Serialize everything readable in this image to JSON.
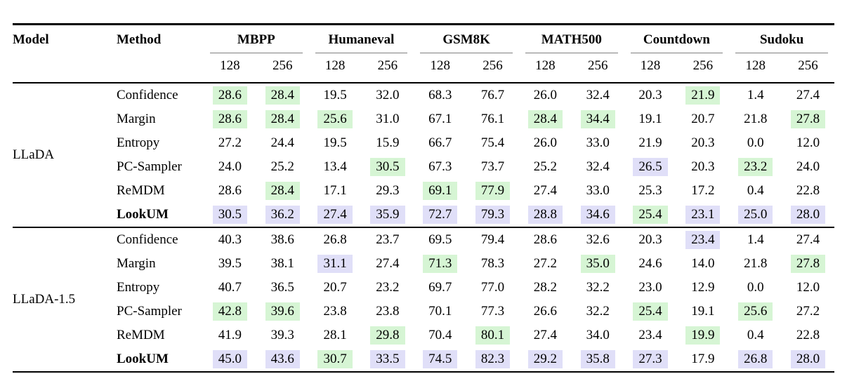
{
  "colors": {
    "green_highlight": "#d6f5d4",
    "purple_highlight": "#e0dff8",
    "rule_dark": "#000000",
    "rule_light": "#7f7f7f",
    "background": "#ffffff"
  },
  "table": {
    "col_model": "Model",
    "col_method": "Method",
    "groups": [
      "MBPP",
      "Humaneval",
      "GSM8K",
      "MATH500",
      "Countdown",
      "Sudoku"
    ],
    "sub_cols": [
      "128",
      "256"
    ],
    "blocks": [
      {
        "model": "LLaDA",
        "rows": [
          {
            "method": "Confidence",
            "bold": false,
            "cells": [
              {
                "v": "28.6",
                "hl": "g"
              },
              {
                "v": "28.4",
                "hl": "g"
              },
              {
                "v": "19.5",
                "hl": ""
              },
              {
                "v": "32.0",
                "hl": ""
              },
              {
                "v": "68.3",
                "hl": ""
              },
              {
                "v": "76.7",
                "hl": ""
              },
              {
                "v": "26.0",
                "hl": ""
              },
              {
                "v": "32.4",
                "hl": ""
              },
              {
                "v": "20.3",
                "hl": ""
              },
              {
                "v": "21.9",
                "hl": "g"
              },
              {
                "v": "1.4",
                "hl": ""
              },
              {
                "v": "27.4",
                "hl": ""
              }
            ]
          },
          {
            "method": "Margin",
            "bold": false,
            "cells": [
              {
                "v": "28.6",
                "hl": "g"
              },
              {
                "v": "28.4",
                "hl": "g"
              },
              {
                "v": "25.6",
                "hl": "g"
              },
              {
                "v": "31.0",
                "hl": ""
              },
              {
                "v": "67.1",
                "hl": ""
              },
              {
                "v": "76.1",
                "hl": ""
              },
              {
                "v": "28.4",
                "hl": "g"
              },
              {
                "v": "34.4",
                "hl": "g"
              },
              {
                "v": "19.1",
                "hl": ""
              },
              {
                "v": "20.7",
                "hl": ""
              },
              {
                "v": "21.8",
                "hl": ""
              },
              {
                "v": "27.8",
                "hl": "g"
              }
            ]
          },
          {
            "method": "Entropy",
            "bold": false,
            "cells": [
              {
                "v": "27.2",
                "hl": ""
              },
              {
                "v": "24.4",
                "hl": ""
              },
              {
                "v": "19.5",
                "hl": ""
              },
              {
                "v": "15.9",
                "hl": ""
              },
              {
                "v": "66.7",
                "hl": ""
              },
              {
                "v": "75.4",
                "hl": ""
              },
              {
                "v": "26.0",
                "hl": ""
              },
              {
                "v": "33.0",
                "hl": ""
              },
              {
                "v": "21.9",
                "hl": ""
              },
              {
                "v": "20.3",
                "hl": ""
              },
              {
                "v": "0.0",
                "hl": ""
              },
              {
                "v": "12.0",
                "hl": ""
              }
            ]
          },
          {
            "method": "PC-Sampler",
            "bold": false,
            "cells": [
              {
                "v": "24.0",
                "hl": ""
              },
              {
                "v": "25.2",
                "hl": ""
              },
              {
                "v": "13.4",
                "hl": ""
              },
              {
                "v": "30.5",
                "hl": "g"
              },
              {
                "v": "67.3",
                "hl": ""
              },
              {
                "v": "73.7",
                "hl": ""
              },
              {
                "v": "25.2",
                "hl": ""
              },
              {
                "v": "32.4",
                "hl": ""
              },
              {
                "v": "26.5",
                "hl": "p"
              },
              {
                "v": "20.3",
                "hl": ""
              },
              {
                "v": "23.2",
                "hl": "g"
              },
              {
                "v": "24.0",
                "hl": ""
              }
            ]
          },
          {
            "method": "ReMDM",
            "bold": false,
            "cells": [
              {
                "v": "28.6",
                "hl": ""
              },
              {
                "v": "28.4",
                "hl": "g"
              },
              {
                "v": "17.1",
                "hl": ""
              },
              {
                "v": "29.3",
                "hl": ""
              },
              {
                "v": "69.1",
                "hl": "g"
              },
              {
                "v": "77.9",
                "hl": "g"
              },
              {
                "v": "27.4",
                "hl": ""
              },
              {
                "v": "33.0",
                "hl": ""
              },
              {
                "v": "25.3",
                "hl": ""
              },
              {
                "v": "17.2",
                "hl": ""
              },
              {
                "v": "0.4",
                "hl": ""
              },
              {
                "v": "22.8",
                "hl": ""
              }
            ]
          },
          {
            "method": "LookUM",
            "bold": true,
            "cells": [
              {
                "v": "30.5",
                "hl": "p"
              },
              {
                "v": "36.2",
                "hl": "p"
              },
              {
                "v": "27.4",
                "hl": "p"
              },
              {
                "v": "35.9",
                "hl": "p"
              },
              {
                "v": "72.7",
                "hl": "p"
              },
              {
                "v": "79.3",
                "hl": "p"
              },
              {
                "v": "28.8",
                "hl": "p"
              },
              {
                "v": "34.6",
                "hl": "p"
              },
              {
                "v": "25.4",
                "hl": "g"
              },
              {
                "v": "23.1",
                "hl": "p"
              },
              {
                "v": "25.0",
                "hl": "p"
              },
              {
                "v": "28.0",
                "hl": "p"
              }
            ]
          }
        ]
      },
      {
        "model": "LLaDA-1.5",
        "rows": [
          {
            "method": "Confidence",
            "bold": false,
            "cells": [
              {
                "v": "40.3",
                "hl": ""
              },
              {
                "v": "38.6",
                "hl": ""
              },
              {
                "v": "26.8",
                "hl": ""
              },
              {
                "v": "23.7",
                "hl": ""
              },
              {
                "v": "69.5",
                "hl": ""
              },
              {
                "v": "79.4",
                "hl": ""
              },
              {
                "v": "28.6",
                "hl": ""
              },
              {
                "v": "32.6",
                "hl": ""
              },
              {
                "v": "20.3",
                "hl": ""
              },
              {
                "v": "23.4",
                "hl": "p"
              },
              {
                "v": "1.4",
                "hl": ""
              },
              {
                "v": "27.4",
                "hl": ""
              }
            ]
          },
          {
            "method": "Margin",
            "bold": false,
            "cells": [
              {
                "v": "39.5",
                "hl": ""
              },
              {
                "v": "38.1",
                "hl": ""
              },
              {
                "v": "31.1",
                "hl": "p"
              },
              {
                "v": "27.4",
                "hl": ""
              },
              {
                "v": "71.3",
                "hl": "g"
              },
              {
                "v": "78.3",
                "hl": ""
              },
              {
                "v": "27.2",
                "hl": ""
              },
              {
                "v": "35.0",
                "hl": "g"
              },
              {
                "v": "24.6",
                "hl": ""
              },
              {
                "v": "14.0",
                "hl": ""
              },
              {
                "v": "21.8",
                "hl": ""
              },
              {
                "v": "27.8",
                "hl": "g"
              }
            ]
          },
          {
            "method": "Entropy",
            "bold": false,
            "cells": [
              {
                "v": "40.7",
                "hl": ""
              },
              {
                "v": "36.5",
                "hl": ""
              },
              {
                "v": "20.7",
                "hl": ""
              },
              {
                "v": "23.2",
                "hl": ""
              },
              {
                "v": "69.7",
                "hl": ""
              },
              {
                "v": "77.0",
                "hl": ""
              },
              {
                "v": "28.2",
                "hl": ""
              },
              {
                "v": "32.2",
                "hl": ""
              },
              {
                "v": "23.0",
                "hl": ""
              },
              {
                "v": "12.9",
                "hl": ""
              },
              {
                "v": "0.0",
                "hl": ""
              },
              {
                "v": "12.0",
                "hl": ""
              }
            ]
          },
          {
            "method": "PC-Sampler",
            "bold": false,
            "cells": [
              {
                "v": "42.8",
                "hl": "g"
              },
              {
                "v": "39.6",
                "hl": "g"
              },
              {
                "v": "23.8",
                "hl": ""
              },
              {
                "v": "23.8",
                "hl": ""
              },
              {
                "v": "70.1",
                "hl": ""
              },
              {
                "v": "77.3",
                "hl": ""
              },
              {
                "v": "26.6",
                "hl": ""
              },
              {
                "v": "32.2",
                "hl": ""
              },
              {
                "v": "25.4",
                "hl": "g"
              },
              {
                "v": "19.1",
                "hl": ""
              },
              {
                "v": "25.6",
                "hl": "g"
              },
              {
                "v": "27.2",
                "hl": ""
              }
            ]
          },
          {
            "method": "ReMDM",
            "bold": false,
            "cells": [
              {
                "v": "41.9",
                "hl": ""
              },
              {
                "v": "39.3",
                "hl": ""
              },
              {
                "v": "28.1",
                "hl": ""
              },
              {
                "v": "29.8",
                "hl": "g"
              },
              {
                "v": "70.4",
                "hl": ""
              },
              {
                "v": "80.1",
                "hl": "g"
              },
              {
                "v": "27.4",
                "hl": ""
              },
              {
                "v": "34.0",
                "hl": ""
              },
              {
                "v": "23.4",
                "hl": ""
              },
              {
                "v": "19.9",
                "hl": "g"
              },
              {
                "v": "0.4",
                "hl": ""
              },
              {
                "v": "22.8",
                "hl": ""
              }
            ]
          },
          {
            "method": "LookUM",
            "bold": true,
            "cells": [
              {
                "v": "45.0",
                "hl": "p"
              },
              {
                "v": "43.6",
                "hl": "p"
              },
              {
                "v": "30.7",
                "hl": "g"
              },
              {
                "v": "33.5",
                "hl": "p"
              },
              {
                "v": "74.5",
                "hl": "p"
              },
              {
                "v": "82.3",
                "hl": "p"
              },
              {
                "v": "29.2",
                "hl": "p"
              },
              {
                "v": "35.8",
                "hl": "p"
              },
              {
                "v": "27.3",
                "hl": "p"
              },
              {
                "v": "17.9",
                "hl": ""
              },
              {
                "v": "26.8",
                "hl": "p"
              },
              {
                "v": "28.0",
                "hl": "p"
              }
            ]
          }
        ]
      }
    ]
  }
}
